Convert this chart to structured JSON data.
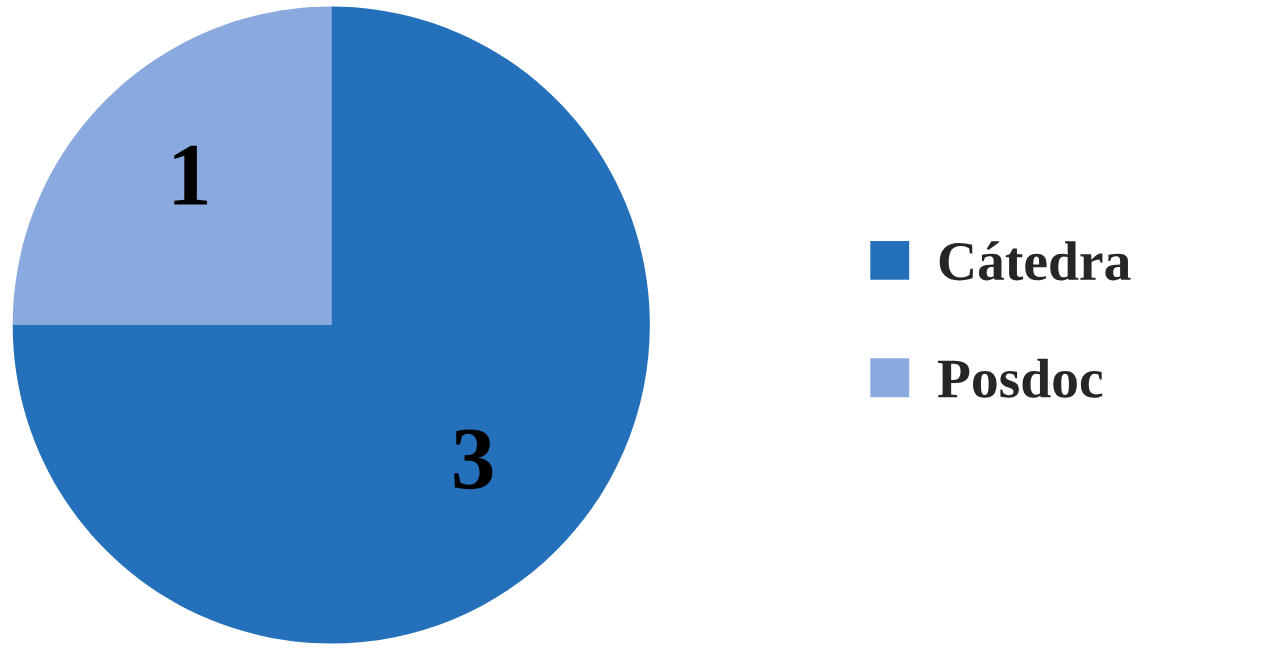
{
  "chart_data": {
    "type": "pie",
    "categories": [
      "Cátedra",
      "Posdoc"
    ],
    "values": [
      3,
      1
    ],
    "colors": [
      "#2470bb",
      "#8aaadf"
    ],
    "data_labels": true,
    "legend": "right"
  }
}
